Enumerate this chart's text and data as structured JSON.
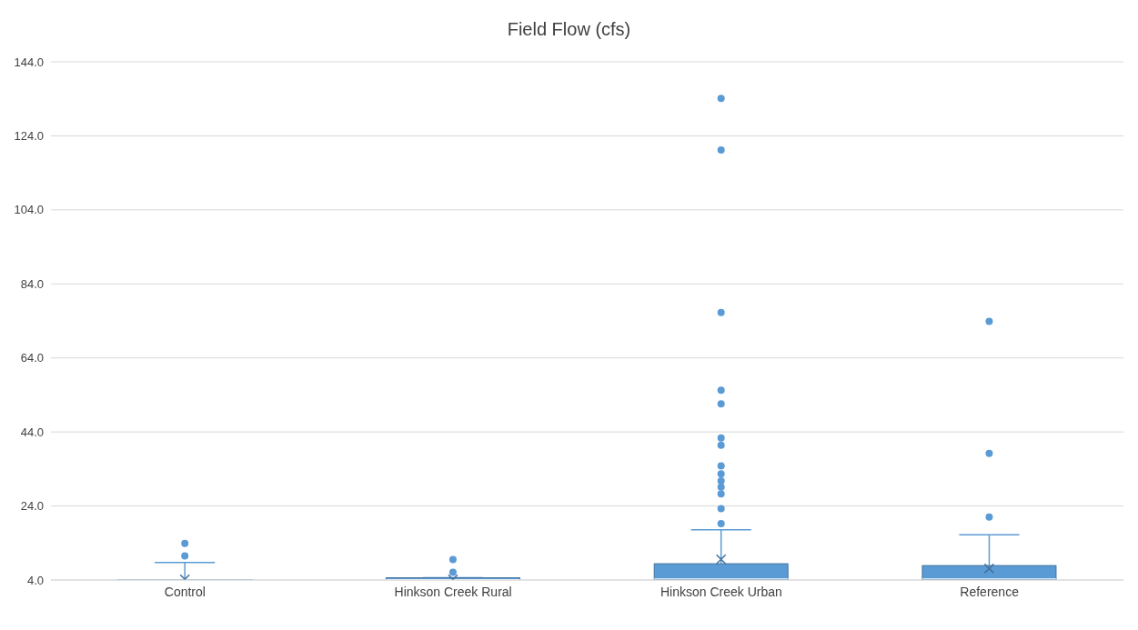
{
  "chart_data": {
    "type": "box",
    "title": "Field Flow (cfs)",
    "categories": [
      "Control",
      "Hinkson Creek Rural",
      "Hinkson Creek Urban",
      "Reference"
    ],
    "color": "#5b9bd5",
    "boxes": [
      {
        "low": 4,
        "q1": 4,
        "median": 4,
        "q3": 4.1,
        "high": 8.7,
        "mean": 4.2,
        "outliers": [
          10.5,
          13.9
        ]
      },
      {
        "low": 4,
        "q1": 4,
        "median": 4.1,
        "q3": 4.6,
        "high": 4.6,
        "mean": 4.2,
        "outliers": [
          6.1,
          9.5
        ]
      },
      {
        "low": 4,
        "q1": 4,
        "median": 4.3,
        "q3": 8.4,
        "high": 17.6,
        "mean": 9.6,
        "outliers": [
          19.2,
          23.3,
          27.3,
          29.1,
          30.8,
          32.7,
          34.8,
          40.4,
          42.4,
          51.6,
          55.3,
          76.3,
          120.2,
          134.1
        ]
      },
      {
        "low": 4,
        "q1": 4,
        "median": 4.3,
        "q3": 7.9,
        "high": 16.2,
        "mean": 7.1,
        "outliers": [
          21.0,
          38.2,
          73.9
        ]
      }
    ],
    "ylim": [
      4,
      144
    ],
    "yticks": [
      {
        "value": 4,
        "label": "4.0"
      },
      {
        "value": 24,
        "label": "24.0"
      },
      {
        "value": 44,
        "label": "44.0"
      },
      {
        "value": 64,
        "label": "64.0"
      },
      {
        "value": 84,
        "label": "84.0"
      },
      {
        "value": 104,
        "label": "104.0"
      },
      {
        "value": 124,
        "label": "124.0"
      },
      {
        "value": 144,
        "label": "144.0"
      }
    ],
    "grid": "y"
  }
}
